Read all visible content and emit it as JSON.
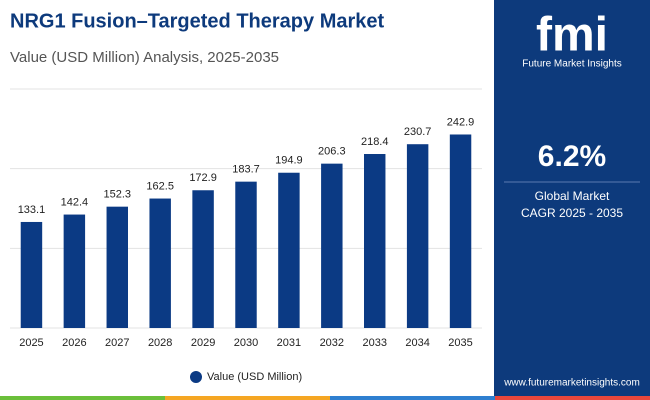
{
  "chart_data": {
    "type": "bar",
    "title": "NRG1 Fusion–Targeted Therapy Market",
    "subtitle": "Value (USD Million) Analysis, 2025-2035",
    "categories": [
      "2025",
      "2026",
      "2027",
      "2028",
      "2029",
      "2030",
      "2031",
      "2032",
      "2033",
      "2034",
      "2035"
    ],
    "series": [
      {
        "name": "Value (USD Million)",
        "color": "#0b3a84",
        "values": [
          133.1,
          142.4,
          152.3,
          162.5,
          172.9,
          183.7,
          194.9,
          206.3,
          218.4,
          230.7,
          242.9
        ]
      }
    ],
    "ylim": [
      0,
      300
    ],
    "yticks": [
      0,
      100,
      200,
      300
    ],
    "grid": true
  },
  "sidebar": {
    "logo": "fmi",
    "brand": "Future Market Insights",
    "cagr": "6.2%",
    "cagr_label_1": "Global Market",
    "cagr_label_2": "CAGR 2025 - 2035",
    "website": "www.futuremarketinsights.com"
  }
}
